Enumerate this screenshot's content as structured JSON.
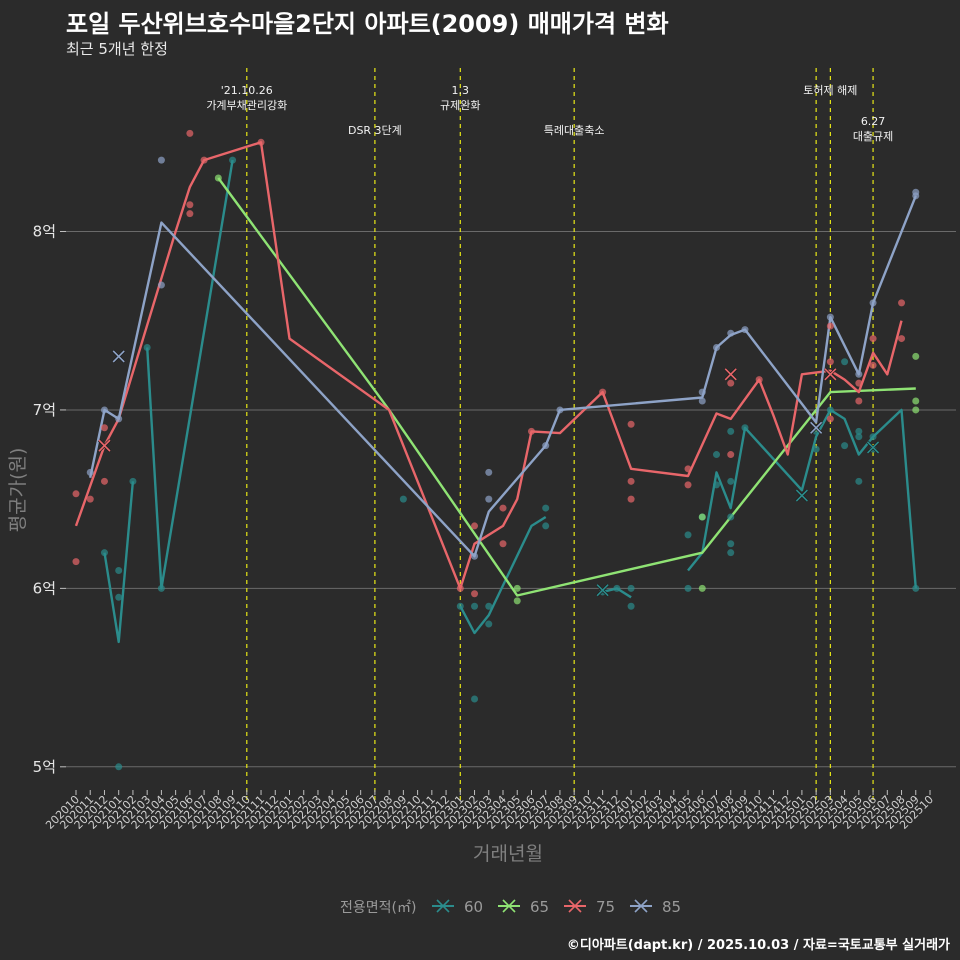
{
  "title": "포일 두산위브호수마을2단지 아파트(2009) 매매가격 변화",
  "subtitle": "최근 5개년 한정",
  "caption": "©디아파트(dapt.kr) / 2025.10.03 / 자료=국토교통부 실거래가",
  "chart_data": {
    "type": "line",
    "title": "포일 두산위브호수마을2단지 아파트(2009) 매매가격 변화",
    "xlabel": "거래년월",
    "ylabel": "평균가(원)",
    "ylim": [
      4.87,
      8.95
    ],
    "y_ticks": [
      {
        "value": 5,
        "label": "5억"
      },
      {
        "value": 6,
        "label": "6억"
      },
      {
        "value": 7,
        "label": "7억"
      },
      {
        "value": 8,
        "label": "8억"
      }
    ],
    "x_start": "2020-10",
    "x_end": "2025-10",
    "legend_title": "전용면적(㎡)",
    "annotations": [
      {
        "month": "2021-10",
        "lines": [
          "'21.10.26",
          "가계부채관리강화"
        ],
        "row": 1
      },
      {
        "month": "2022-07",
        "lines": [
          "DSR 3단계"
        ],
        "row": 2
      },
      {
        "month": "2023-01",
        "lines": [
          "1.3",
          "규제완화"
        ],
        "row": 1
      },
      {
        "month": "2023-09",
        "lines": [
          "특례대출축소"
        ],
        "row": 2
      },
      {
        "month": "2025-02",
        "lines": [],
        "row": 0
      },
      {
        "month": "2025-03",
        "lines": [
          "토허제 해제"
        ],
        "row": 1
      },
      {
        "month": "2025-06",
        "lines": [
          "6.27",
          "대출규제"
        ],
        "row": 3
      }
    ],
    "series": [
      {
        "name": "60",
        "color": "#2b8c8c",
        "line": [
          [
            "2020-12",
            6.2
          ],
          [
            "2021-01",
            5.7
          ],
          [
            "2021-02",
            6.6
          ],
          null,
          [
            "2021-03",
            7.35
          ],
          [
            "2021-04",
            6.0
          ],
          [
            "2021-09",
            8.4
          ],
          null,
          [
            "2023-01",
            5.9
          ],
          [
            "2023-02",
            5.75
          ],
          [
            "2023-03",
            5.85
          ],
          [
            "2023-06",
            6.35
          ],
          [
            "2023-07",
            6.4
          ],
          null,
          [
            "2023-11",
            5.98
          ],
          [
            "2023-12",
            6.0
          ],
          [
            "2024-01",
            5.95
          ],
          null,
          [
            "2024-05",
            6.1
          ],
          [
            "2024-06",
            6.2
          ],
          [
            "2024-07",
            6.65
          ],
          [
            "2024-08",
            6.45
          ],
          [
            "2024-09",
            6.9
          ],
          [
            "2025-01",
            6.55
          ],
          [
            "2025-02",
            6.85
          ],
          [
            "2025-03",
            7.0
          ],
          [
            "2025-04",
            6.95
          ],
          [
            "2025-05",
            6.75
          ],
          [
            "2025-06",
            6.85
          ],
          [
            "2025-08",
            7.0
          ],
          [
            "2025-09",
            6.0
          ]
        ],
        "points": [
          [
            "2020-12",
            6.2
          ],
          [
            "2021-01",
            5.0
          ],
          [
            "2021-01",
            5.95
          ],
          [
            "2021-01",
            6.1
          ],
          [
            "2021-02",
            6.6
          ],
          [
            "2021-03",
            7.35
          ],
          [
            "2021-04",
            6.0
          ],
          [
            "2021-09",
            8.4
          ],
          [
            "2022-09",
            6.5
          ],
          [
            "2023-01",
            5.9
          ],
          [
            "2023-02",
            5.38
          ],
          [
            "2023-02",
            5.9
          ],
          [
            "2023-03",
            5.8
          ],
          [
            "2023-03",
            5.9
          ],
          [
            "2023-07",
            6.35
          ],
          [
            "2023-07",
            6.45
          ],
          [
            "2023-11",
            5.98
          ],
          [
            "2023-12",
            6.0
          ],
          [
            "2024-01",
            5.9
          ],
          [
            "2024-01",
            6.0
          ],
          [
            "2024-05",
            6.0
          ],
          [
            "2024-05",
            6.3
          ],
          [
            "2024-06",
            6.4
          ],
          [
            "2024-07",
            6.75
          ],
          [
            "2024-07",
            6.58
          ],
          [
            "2024-08",
            6.2
          ],
          [
            "2024-08",
            6.25
          ],
          [
            "2024-08",
            6.4
          ],
          [
            "2024-08",
            6.6
          ],
          [
            "2024-08",
            6.88
          ],
          [
            "2024-09",
            6.9
          ],
          [
            "2025-02",
            6.78
          ],
          [
            "2025-02",
            6.88
          ],
          [
            "2025-03",
            7.0
          ],
          [
            "2025-04",
            6.8
          ],
          [
            "2025-04",
            7.27
          ],
          [
            "2025-05",
            6.6
          ],
          [
            "2025-05",
            6.85
          ],
          [
            "2025-05",
            6.88
          ],
          [
            "2025-06",
            6.78
          ],
          [
            "2025-06",
            6.85
          ],
          [
            "2025-09",
            6.0
          ]
        ],
        "crosses": [
          [
            "2023-11",
            5.99
          ],
          [
            "2025-01",
            6.52
          ],
          [
            "2025-06",
            6.79
          ]
        ]
      },
      {
        "name": "65",
        "color": "#8fe374",
        "line": [
          [
            "2021-08",
            8.3
          ],
          [
            "2022-08",
            7.0
          ],
          [
            "2023-05",
            5.96
          ],
          [
            "2024-06",
            6.2
          ],
          [
            "2025-03",
            7.1
          ],
          [
            "2025-09",
            7.12
          ]
        ],
        "points": [
          [
            "2021-08",
            8.3
          ],
          [
            "2023-05",
            5.93
          ],
          [
            "2023-05",
            6.0
          ],
          [
            "2024-06",
            6.0
          ],
          [
            "2024-06",
            6.4
          ],
          [
            "2025-09",
            7.0
          ],
          [
            "2025-09",
            7.05
          ],
          [
            "2025-09",
            7.3
          ]
        ],
        "crosses": []
      },
      {
        "name": "75",
        "color": "#e8666a",
        "line": [
          [
            "2020-10",
            6.35
          ],
          [
            "2020-12",
            6.8
          ],
          [
            "2021-01",
            6.95
          ],
          [
            "2021-05",
            8.0
          ],
          [
            "2021-06",
            8.25
          ],
          [
            "2021-07",
            8.4
          ],
          [
            "2021-11",
            8.5
          ],
          [
            "2022-01",
            7.4
          ],
          [
            "2022-08",
            7.0
          ],
          [
            "2023-01",
            6.0
          ],
          [
            "2023-02",
            6.25
          ],
          [
            "2023-04",
            6.35
          ],
          [
            "2023-05",
            6.5
          ],
          [
            "2023-06",
            6.88
          ],
          [
            "2023-08",
            6.87
          ],
          [
            "2023-11",
            7.1
          ],
          [
            "2024-01",
            6.67
          ],
          [
            "2024-05",
            6.63
          ],
          [
            "2024-07",
            6.98
          ],
          [
            "2024-08",
            6.95
          ],
          [
            "2024-10",
            7.17
          ],
          [
            "2024-11",
            6.97
          ],
          [
            "2024-12",
            6.75
          ],
          [
            "2025-01",
            7.2
          ],
          [
            "2025-03",
            7.22
          ],
          [
            "2025-04",
            7.17
          ],
          [
            "2025-05",
            7.1
          ],
          [
            "2025-06",
            7.32
          ],
          [
            "2025-07",
            7.2
          ],
          [
            "2025-08",
            7.5
          ]
        ],
        "points": [
          [
            "2020-10",
            6.53
          ],
          [
            "2020-10",
            6.15
          ],
          [
            "2020-11",
            6.5
          ],
          [
            "2020-12",
            6.9
          ],
          [
            "2020-12",
            6.6
          ],
          [
            "2021-06",
            8.55
          ],
          [
            "2021-06",
            8.15
          ],
          [
            "2021-06",
            8.1
          ],
          [
            "2021-07",
            8.4
          ],
          [
            "2021-11",
            8.5
          ],
          [
            "2023-01",
            6.0
          ],
          [
            "2023-02",
            5.97
          ],
          [
            "2023-02",
            6.35
          ],
          [
            "2023-04",
            6.25
          ],
          [
            "2023-04",
            6.45
          ],
          [
            "2023-06",
            6.88
          ],
          [
            "2023-11",
            7.1
          ],
          [
            "2024-01",
            6.92
          ],
          [
            "2024-01",
            6.6
          ],
          [
            "2024-01",
            6.5
          ],
          [
            "2024-05",
            6.67
          ],
          [
            "2024-05",
            6.58
          ],
          [
            "2024-08",
            6.75
          ],
          [
            "2024-08",
            7.15
          ],
          [
            "2024-10",
            7.17
          ],
          [
            "2025-03",
            7.27
          ],
          [
            "2025-03",
            7.47
          ],
          [
            "2025-03",
            6.95
          ],
          [
            "2025-05",
            7.05
          ],
          [
            "2025-05",
            7.15
          ],
          [
            "2025-06",
            7.25
          ],
          [
            "2025-06",
            7.4
          ],
          [
            "2025-08",
            7.4
          ],
          [
            "2025-08",
            7.6
          ]
        ],
        "crosses": [
          [
            "2020-12",
            6.8
          ],
          [
            "2024-08",
            7.2
          ],
          [
            "2025-03",
            7.2
          ]
        ]
      },
      {
        "name": "85",
        "color": "#8ea3c7",
        "line": [
          [
            "2020-11",
            6.62
          ],
          [
            "2020-12",
            7.0
          ],
          [
            "2021-01",
            6.95
          ],
          [
            "2021-04",
            8.05
          ],
          [
            "2023-02",
            6.18
          ],
          [
            "2023-03",
            6.43
          ],
          [
            "2023-07",
            6.8
          ],
          [
            "2023-08",
            7.0
          ],
          [
            "2024-06",
            7.07
          ],
          [
            "2024-07",
            7.35
          ],
          [
            "2024-08",
            7.42
          ],
          [
            "2024-09",
            7.45
          ],
          [
            "2025-02",
            6.93
          ],
          [
            "2025-03",
            7.52
          ],
          [
            "2025-05",
            7.2
          ],
          [
            "2025-06",
            7.6
          ],
          [
            "2025-09",
            8.2
          ]
        ],
        "points": [
          [
            "2020-11",
            6.65
          ],
          [
            "2020-12",
            7.0
          ],
          [
            "2021-01",
            6.95
          ],
          [
            "2021-04",
            8.4
          ],
          [
            "2021-04",
            7.7
          ],
          [
            "2023-02",
            6.18
          ],
          [
            "2023-03",
            6.65
          ],
          [
            "2023-03",
            6.5
          ],
          [
            "2023-07",
            6.8
          ],
          [
            "2023-08",
            7.0
          ],
          [
            "2024-06",
            7.1
          ],
          [
            "2024-06",
            7.05
          ],
          [
            "2024-07",
            7.35
          ],
          [
            "2024-08",
            7.43
          ],
          [
            "2024-09",
            7.45
          ],
          [
            "2025-03",
            7.52
          ],
          [
            "2025-05",
            7.2
          ],
          [
            "2025-06",
            7.6
          ],
          [
            "2025-09",
            8.22
          ],
          [
            "2025-09",
            8.2
          ]
        ],
        "crosses": [
          [
            "2021-01",
            7.3
          ],
          [
            "2025-02",
            6.9
          ]
        ]
      }
    ]
  }
}
